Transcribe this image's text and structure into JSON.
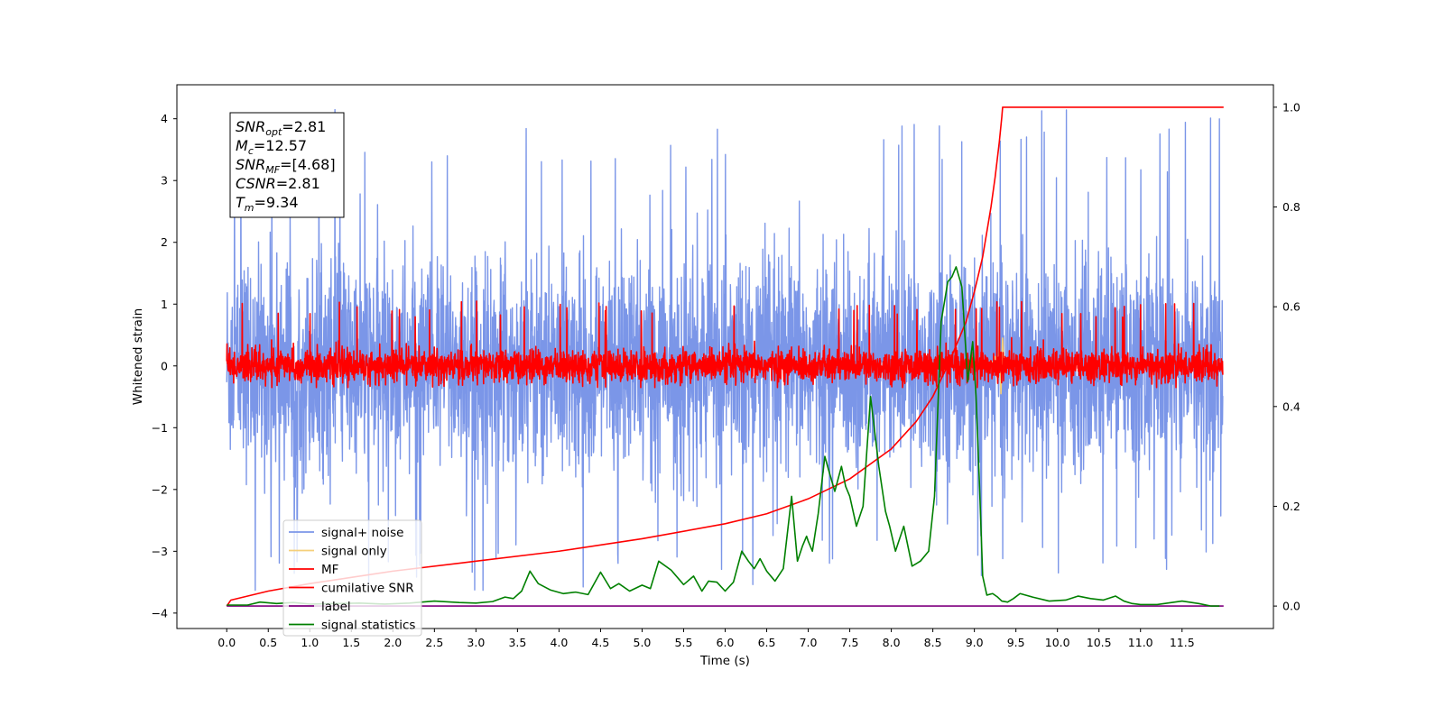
{
  "chart_data": {
    "type": "line",
    "xlabel": "Time (s)",
    "ylabel": "Whitened strain",
    "xlim": [
      -0.6,
      12.6
    ],
    "ylim": [
      -4.25,
      4.55
    ],
    "y2lim": [
      -0.045,
      1.045
    ],
    "x_ticks": [
      "0.0",
      "0.5",
      "1.0",
      "1.5",
      "2.0",
      "2.5",
      "3.0",
      "3.5",
      "4.0",
      "4.5",
      "5.0",
      "5.5",
      "6.0",
      "6.5",
      "7.0",
      "7.5",
      "8.0",
      "8.5",
      "9.0",
      "9.5",
      "10.0",
      "10.5",
      "11.0",
      "11.5"
    ],
    "y_ticks": [
      4,
      3,
      2,
      1,
      0,
      -1,
      -2,
      -3,
      -4
    ],
    "y2_ticks": [
      "0.0",
      "0.2",
      "0.4",
      "0.6",
      "0.8",
      "1.0"
    ],
    "grid": false,
    "legend": {
      "location": "lower-left",
      "entries": [
        {
          "label": "signal+ noise",
          "color": "#7b96e8"
        },
        {
          "label": "signal only",
          "color": "#f5cf7a"
        },
        {
          "label": "MF",
          "color": "#ff0000"
        },
        {
          "label": "cumilative SNR",
          "color": "#ff0000"
        },
        {
          "label": "label",
          "color": "#800080"
        },
        {
          "label": "signal statistics",
          "color": "#008000"
        }
      ]
    },
    "annotation": {
      "lines": [
        {
          "base": "SNR",
          "sub": "opt",
          "value": "=2.81"
        },
        {
          "base": "M",
          "sub": "c",
          "value": "=12.57"
        },
        {
          "base": "SNR",
          "sub": "MF",
          "value": "=[4.68]"
        },
        {
          "base": "CSNR",
          "sub": "",
          "value": "=2.81"
        },
        {
          "base": "T",
          "sub": "m",
          "value": "=9.34"
        }
      ]
    },
    "series": [
      {
        "name": "signal+ noise",
        "axis": "left",
        "kind": "noise",
        "x_range": [
          0.0,
          11.99
        ],
        "y_range": [
          -3.65,
          4.18
        ],
        "typical_amplitude": 1.0,
        "color": "#7b96e8"
      },
      {
        "name": "signal only",
        "axis": "left",
        "x": [
          9.2,
          9.25,
          9.28,
          9.3,
          9.32,
          9.34,
          9.36
        ],
        "y": [
          0.0,
          0.15,
          -0.2,
          0.35,
          -0.45,
          0.45,
          0.0
        ],
        "color": "#f5cf7a"
      },
      {
        "name": "MF",
        "axis": "left",
        "kind": "noise",
        "x_range": [
          0.0,
          11.99
        ],
        "y_range": [
          -0.35,
          1.05
        ],
        "typical_amplitude": 0.15,
        "color": "#ff0000"
      },
      {
        "name": "cumilative SNR",
        "axis": "right",
        "x": [
          0.0,
          0.05,
          0.5,
          1.0,
          2.0,
          3.0,
          4.0,
          5.0,
          6.0,
          6.5,
          7.0,
          7.5,
          8.0,
          8.3,
          8.5,
          8.7,
          8.9,
          9.0,
          9.1,
          9.2,
          9.25,
          9.3,
          9.33,
          9.34,
          10.0,
          11.0,
          12.0
        ],
        "y": [
          0.0,
          0.012,
          0.03,
          0.045,
          0.07,
          0.09,
          0.11,
          0.135,
          0.165,
          0.185,
          0.215,
          0.255,
          0.315,
          0.37,
          0.42,
          0.49,
          0.57,
          0.63,
          0.7,
          0.8,
          0.86,
          0.93,
          0.98,
          1.0,
          1.0,
          1.0,
          1.0
        ],
        "color": "#ff0000"
      },
      {
        "name": "label",
        "axis": "right",
        "x": [
          0.0,
          12.0
        ],
        "y": [
          0.0,
          0.0
        ],
        "color": "#800080"
      },
      {
        "name": "signal statistics",
        "axis": "right",
        "x": [
          0.0,
          0.25,
          0.4,
          0.6,
          0.8,
          1.0,
          1.3,
          1.6,
          1.9,
          2.2,
          2.5,
          2.8,
          3.0,
          3.2,
          3.35,
          3.45,
          3.55,
          3.65,
          3.75,
          3.9,
          4.05,
          4.2,
          4.35,
          4.5,
          4.62,
          4.72,
          4.85,
          5.0,
          5.1,
          5.2,
          5.35,
          5.5,
          5.62,
          5.72,
          5.8,
          5.9,
          6.0,
          6.1,
          6.2,
          6.28,
          6.35,
          6.42,
          6.5,
          6.6,
          6.7,
          6.8,
          6.87,
          6.93,
          6.98,
          7.0,
          7.05,
          7.12,
          7.2,
          7.25,
          7.32,
          7.4,
          7.45,
          7.5,
          7.58,
          7.66,
          7.75,
          7.85,
          7.93,
          7.98,
          8.05,
          8.15,
          8.25,
          8.35,
          8.45,
          8.52,
          8.6,
          8.68,
          8.73,
          8.78,
          8.85,
          8.92,
          8.98,
          9.02,
          9.06,
          9.1,
          9.15,
          9.22,
          9.28,
          9.33,
          9.4,
          9.47,
          9.55,
          9.7,
          9.9,
          10.1,
          10.25,
          10.4,
          10.55,
          10.7,
          10.8,
          10.9,
          11.0,
          11.2,
          11.5,
          11.7,
          11.85,
          11.95
        ],
        "y": [
          0.002,
          0.002,
          0.008,
          0.005,
          0.007,
          0.004,
          0.005,
          0.006,
          0.004,
          0.006,
          0.01,
          0.007,
          0.006,
          0.009,
          0.018,
          0.015,
          0.03,
          0.07,
          0.045,
          0.032,
          0.025,
          0.028,
          0.023,
          0.068,
          0.035,
          0.045,
          0.03,
          0.042,
          0.035,
          0.09,
          0.072,
          0.043,
          0.06,
          0.03,
          0.05,
          0.048,
          0.03,
          0.048,
          0.11,
          0.09,
          0.075,
          0.095,
          0.07,
          0.05,
          0.075,
          0.22,
          0.09,
          0.12,
          0.14,
          0.13,
          0.11,
          0.185,
          0.3,
          0.27,
          0.23,
          0.28,
          0.24,
          0.22,
          0.16,
          0.2,
          0.42,
          0.28,
          0.19,
          0.16,
          0.11,
          0.16,
          0.08,
          0.09,
          0.11,
          0.22,
          0.57,
          0.65,
          0.66,
          0.68,
          0.64,
          0.45,
          0.53,
          0.42,
          0.25,
          0.06,
          0.022,
          0.025,
          0.018,
          0.01,
          0.008,
          0.015,
          0.025,
          0.018,
          0.01,
          0.012,
          0.02,
          0.015,
          0.012,
          0.02,
          0.01,
          0.005,
          0.003,
          0.003,
          0.01,
          0.005,
          0.0,
          0.0
        ],
        "color": "#008000"
      }
    ]
  }
}
